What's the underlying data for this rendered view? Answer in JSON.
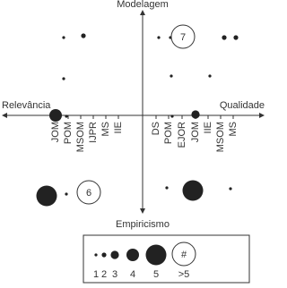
{
  "chart_data": {
    "type": "bubble",
    "axis_labels": {
      "top": "Modelagem",
      "bottom": "Empiricismo",
      "left": "Relevância",
      "right": "Qualidade"
    },
    "left_categories": [
      "JOM",
      "POM",
      "MSOM",
      "IJPR",
      "MS",
      "IIE"
    ],
    "right_categories": [
      "DS",
      "POM",
      "EJOR",
      "JOM",
      "IIE",
      "MSOM",
      "MS"
    ],
    "bubbles": [
      {
        "count": 1
      },
      {
        "count": 2
      },
      {
        "count": 1
      },
      {
        "count": 4
      },
      {
        "count": 1
      },
      {
        "count": 1
      },
      {
        "count": 1
      },
      {
        "count": 7
      },
      {
        "count": 2
      },
      {
        "count": 2
      },
      {
        "count": 1
      },
      {
        "count": 1
      },
      {
        "count": 1
      },
      {
        "count": 3
      },
      {
        "count": 5
      },
      {
        "count": 1
      },
      {
        "count": 6
      },
      {
        "count": 1
      },
      {
        "count": 5
      },
      {
        "count": 1
      }
    ],
    "legend": {
      "sizes": [
        1,
        2,
        3,
        4,
        5
      ],
      "overflow_label": ">5",
      "overflow_symbol": "#"
    },
    "color": "#222222"
  }
}
